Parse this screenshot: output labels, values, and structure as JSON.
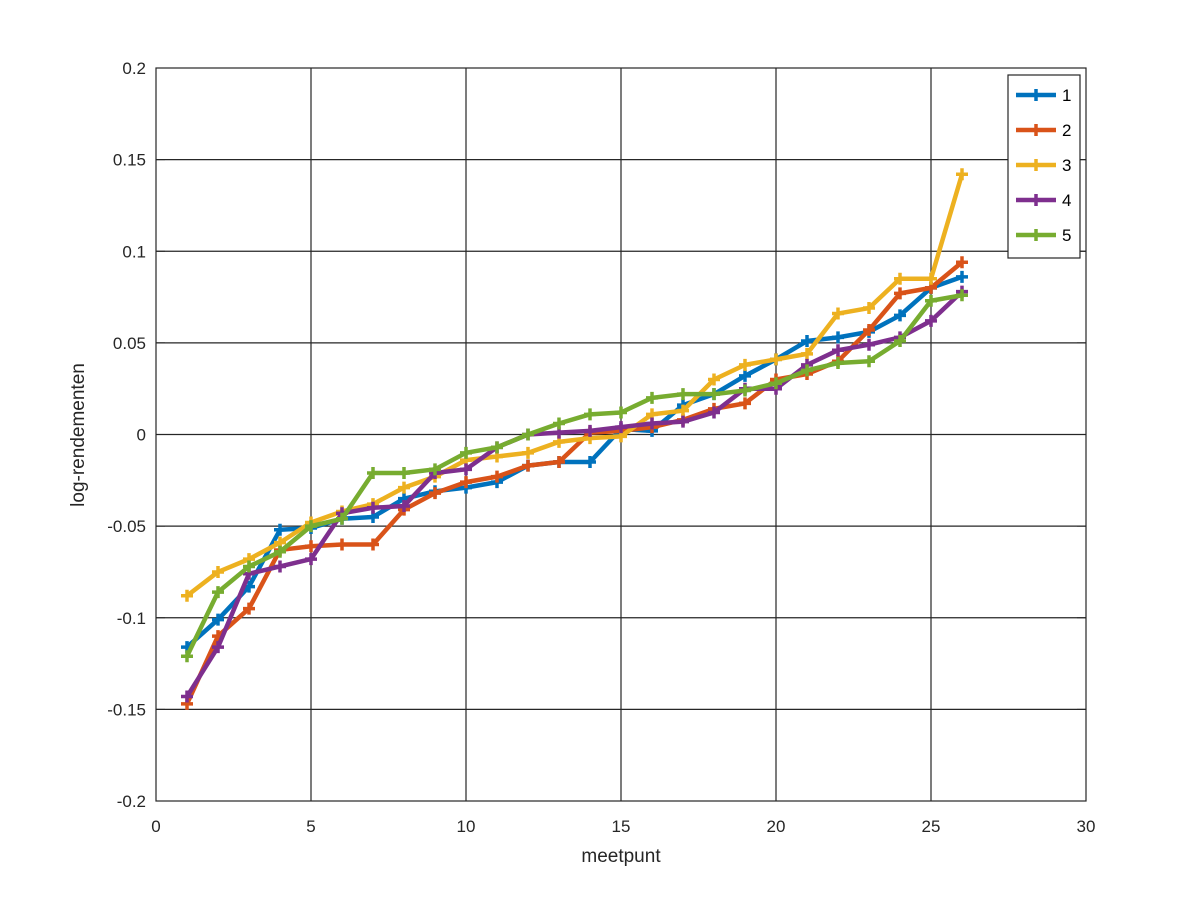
{
  "chart_data": {
    "type": "line",
    "title": "",
    "xlabel": "meetpunt",
    "ylabel": "log-rendementen",
    "xlim": [
      0,
      30
    ],
    "ylim": [
      -0.2,
      0.2
    ],
    "xticks": [
      0,
      5,
      10,
      15,
      20,
      25,
      30
    ],
    "yticks": [
      -0.2,
      -0.15,
      -0.1,
      -0.05,
      0,
      0.05,
      0.1,
      0.15,
      0.2
    ],
    "xtick_labels": [
      "0",
      "5",
      "10",
      "15",
      "20",
      "25",
      "30"
    ],
    "ytick_labels": [
      "-0.2",
      "-0.15",
      "-0.1",
      "-0.05",
      "0",
      "0.05",
      "0.1",
      "0.15",
      "0.2"
    ],
    "grid": true,
    "legend_position": "top-right",
    "marker": "+",
    "x": [
      1,
      2,
      3,
      4,
      5,
      6,
      7,
      8,
      9,
      10,
      11,
      12,
      13,
      14,
      15,
      16,
      17,
      18,
      19,
      20,
      21,
      22,
      23,
      24,
      25,
      26
    ],
    "series": [
      {
        "name": "1",
        "color": "#0072BD",
        "values": [
          -0.116,
          -0.101,
          -0.083,
          -0.052,
          -0.051,
          -0.046,
          -0.045,
          -0.035,
          -0.031,
          -0.029,
          -0.026,
          -0.017,
          -0.015,
          -0.015,
          0.003,
          0.002,
          0.016,
          0.022,
          0.032,
          0.041,
          0.051,
          0.053,
          0.056,
          0.065,
          0.08,
          0.086
        ]
      },
      {
        "name": "2",
        "color": "#D95319",
        "values": [
          -0.147,
          -0.11,
          -0.095,
          -0.063,
          -0.061,
          -0.06,
          -0.06,
          -0.041,
          -0.032,
          -0.026,
          -0.023,
          -0.017,
          -0.015,
          0.001,
          0.002,
          0.004,
          0.008,
          0.014,
          0.017,
          0.03,
          0.033,
          0.04,
          0.057,
          0.077,
          0.08,
          0.094
        ]
      },
      {
        "name": "3",
        "color": "#EDB120",
        "values": [
          -0.088,
          -0.075,
          -0.068,
          -0.059,
          -0.048,
          -0.042,
          -0.038,
          -0.029,
          -0.023,
          -0.014,
          -0.012,
          -0.01,
          -0.004,
          -0.002,
          -0.001,
          0.011,
          0.013,
          0.03,
          0.038,
          0.041,
          0.044,
          0.066,
          0.069,
          0.085,
          0.085,
          0.142
        ]
      },
      {
        "name": "4",
        "color": "#7E2F8E",
        "values": [
          -0.143,
          -0.116,
          -0.076,
          -0.072,
          -0.068,
          -0.043,
          -0.04,
          -0.039,
          -0.021,
          -0.019,
          -0.007,
          0.0,
          0.001,
          0.002,
          0.004,
          0.006,
          0.007,
          0.012,
          0.025,
          0.025,
          0.038,
          0.046,
          0.049,
          0.053,
          0.062,
          0.078
        ]
      },
      {
        "name": "5",
        "color": "#77AC30",
        "values": [
          -0.121,
          -0.086,
          -0.072,
          -0.064,
          -0.05,
          -0.046,
          -0.021,
          -0.021,
          -0.019,
          -0.01,
          -0.007,
          0.0,
          0.006,
          0.011,
          0.012,
          0.02,
          0.022,
          0.022,
          0.024,
          0.028,
          0.035,
          0.039,
          0.04,
          0.051,
          0.073,
          0.076
        ]
      }
    ]
  }
}
